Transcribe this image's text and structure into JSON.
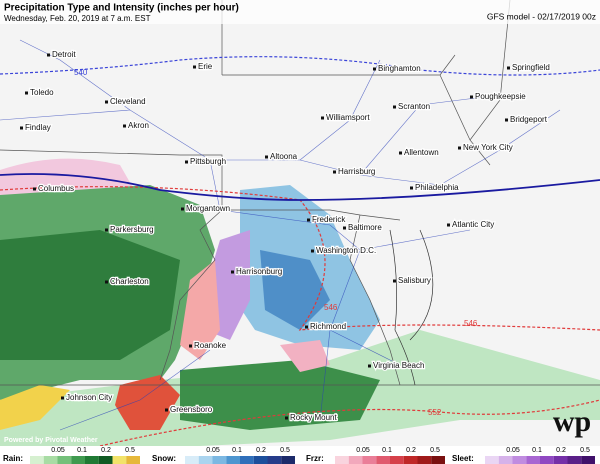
{
  "header": {
    "title": "Precipitation Type and Intensity (inches per hour)",
    "subtitle": "Wednesday, Feb. 20, 2019 at 7 a.m. EST",
    "model": "GFS model - 02/17/2019 00z"
  },
  "cities": [
    "Detroit",
    "Toledo",
    "Cleveland",
    "Akron",
    "Findlay",
    "Erie",
    "Binghamton",
    "Springfield",
    "Poughkeepsie",
    "Williamsport",
    "Scranton",
    "Bridgeport",
    "Pittsburgh",
    "Altoona",
    "Allentown",
    "New York City",
    "Harrisburg",
    "Columbus",
    "Philadelphia",
    "Morgantown",
    "Frederick",
    "Baltimore",
    "Parkersburg",
    "Atlantic City",
    "Washington D.C.",
    "Harrisonburg",
    "Charleston",
    "Salisbury",
    "Richmond",
    "Roanoke",
    "Virginia Beach",
    "Johnson City",
    "Greensboro",
    "Rocky Mount"
  ],
  "contours": [
    540,
    546,
    546,
    552
  ],
  "legend": [
    {
      "label": "Rain:",
      "ticks": [
        0.05,
        0.1,
        0.2,
        0.5
      ]
    },
    {
      "label": "Snow:",
      "ticks": [
        0.05,
        0.1,
        0.2,
        0.5
      ]
    },
    {
      "label": "Frzr:",
      "ticks": [
        0.05,
        0.1,
        0.2,
        0.5
      ]
    },
    {
      "label": "Sleet:",
      "ticks": [
        0.05,
        0.1,
        0.2,
        0.5
      ]
    }
  ],
  "credit": "Powered by Pivotal Weather",
  "logo": "wp"
}
